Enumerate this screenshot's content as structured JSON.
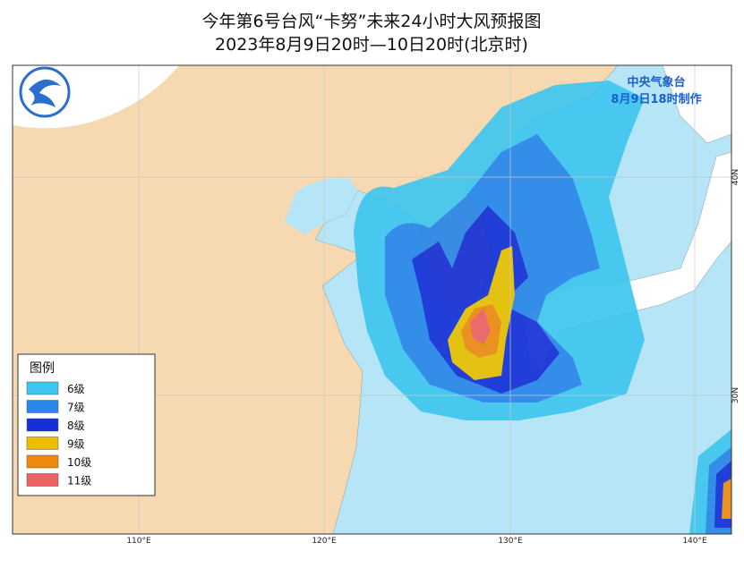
{
  "header": {
    "title": "今年第6号台风“卡努”未来24小时大风预报图",
    "subtitle": "2023年8月9日20时—10日20时(北京时)"
  },
  "agency": {
    "name": "中央气象台",
    "issued": "8月9日18时制作"
  },
  "legend": {
    "title": "图例",
    "items": [
      {
        "label": "6级",
        "color": "#3fc6ef"
      },
      {
        "label": "7级",
        "color": "#2a86e8"
      },
      {
        "label": "8级",
        "color": "#1530d6"
      },
      {
        "label": "9级",
        "color": "#e8c000"
      },
      {
        "label": "10级",
        "color": "#ee8a10"
      },
      {
        "label": "11级",
        "color": "#f06060"
      }
    ]
  },
  "axes": {
    "longitude_labels": [
      "110°E",
      "120°E",
      "130°E",
      "140°E"
    ],
    "latitude_labels": [
      "40N",
      "30N"
    ]
  }
}
